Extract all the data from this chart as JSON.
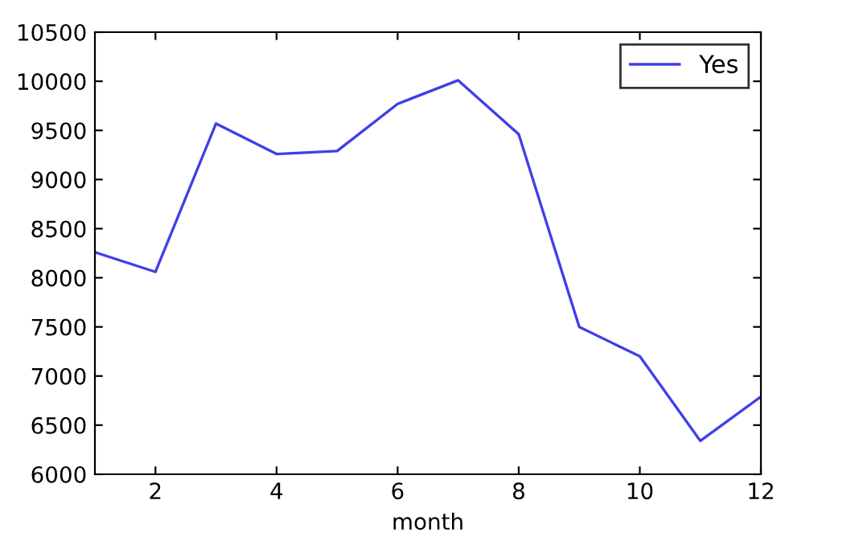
{
  "chart_data": {
    "type": "line",
    "xlabel": "month",
    "x": [
      1,
      2,
      3,
      4,
      5,
      6,
      7,
      8,
      9,
      10,
      11,
      12
    ],
    "series": [
      {
        "name": "Yes",
        "color": "#3f3fe8",
        "values": [
          8260,
          8060,
          9570,
          9260,
          9290,
          9770,
          10010,
          9460,
          7500,
          7200,
          6340,
          6790
        ]
      }
    ],
    "xlim": [
      1,
      12
    ],
    "xticks": [
      2,
      4,
      6,
      8,
      10,
      12
    ],
    "ylim": [
      6000,
      10500
    ],
    "yticks": [
      6000,
      6500,
      7000,
      7500,
      8000,
      8500,
      9000,
      9500,
      10000,
      10500
    ],
    "grid": false,
    "legend": "top right",
    "marker": "none",
    "line_style": "solid"
  }
}
